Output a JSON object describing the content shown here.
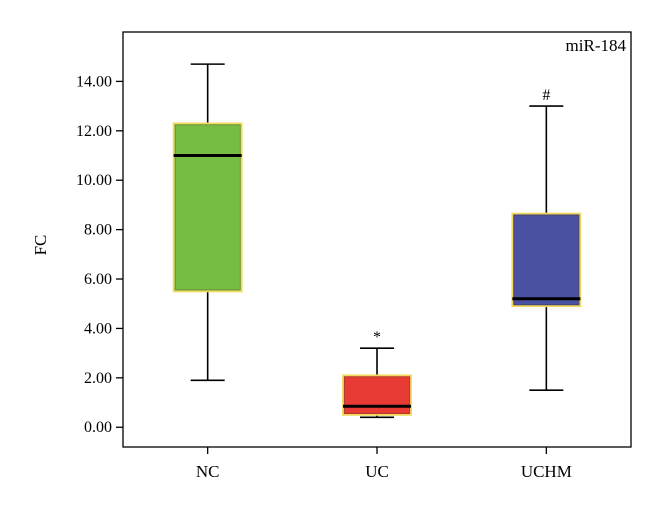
{
  "chart_data": {
    "type": "boxplot",
    "title": "",
    "annotation": "miR-184",
    "xlabel": "",
    "ylabel": "FC",
    "ylim": [
      -0.8,
      16.0
    ],
    "yticks": [
      "0.00",
      "2.00",
      "4.00",
      "6.00",
      "8.00",
      "10.00",
      "12.00",
      "14.00"
    ],
    "ytick_values": [
      0,
      2,
      4,
      6,
      8,
      10,
      12,
      14
    ],
    "categories": [
      "NC",
      "UC",
      "UCHM"
    ],
    "boxes": [
      {
        "category": "NC",
        "min": 1.9,
        "q1": 5.5,
        "median": 11.0,
        "q3": 12.3,
        "max": 14.7,
        "color": "#76bd43",
        "mark": ""
      },
      {
        "category": "UC",
        "min": 0.4,
        "q1": 0.5,
        "median": 0.85,
        "q3": 2.1,
        "max": 3.2,
        "color": "#e93b35",
        "mark": "*"
      },
      {
        "category": "UCHM",
        "min": 1.5,
        "q1": 4.9,
        "median": 5.2,
        "q3": 8.65,
        "max": 13.0,
        "color": "#4a51a0",
        "mark": "#"
      }
    ],
    "box_border_color": "#f2d85c",
    "grid": false
  }
}
